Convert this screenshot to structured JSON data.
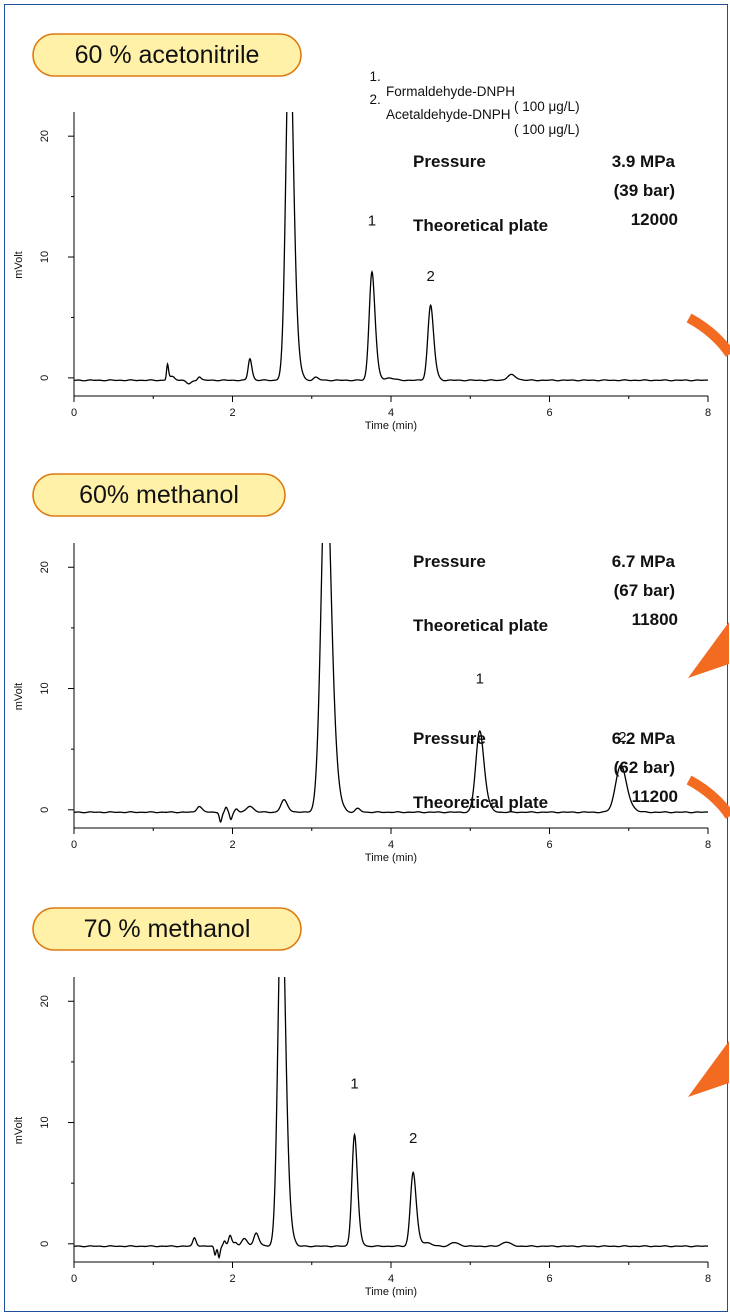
{
  "legend": [
    {
      "num": "1.",
      "name": "Formaldehyde-DNPH",
      "conc": "( 100 μg/L)"
    },
    {
      "num": "2.",
      "name": "Acetaldehyde-DNPH",
      "conc": "( 100 μg/L)"
    }
  ],
  "labels": {
    "pressure": "Pressure",
    "plate": "Theoretical plate"
  },
  "colors": {
    "badge_fill": "#fff2a8",
    "badge_stroke": "#e07a12",
    "arrow": "#f26b21",
    "frame": "#1f4e9c",
    "trace": "#000000"
  },
  "chart_data": [
    {
      "type": "line",
      "condition": "60 % acetonitrile",
      "pressure_value": "3.9  MPa",
      "pressure_bar": "(39 bar)",
      "plate_value": "12000",
      "xlabel": "Time (min)",
      "ylabel": "mVolt",
      "xlim": [
        0,
        8
      ],
      "ylim": [
        -1.5,
        22
      ],
      "xticks": [
        "0",
        "2",
        "4",
        "6",
        "8"
      ],
      "yticks": [
        "0",
        "10",
        "20"
      ],
      "baseline": -0.2,
      "peaks": [
        {
          "t": 1.18,
          "h": 1.3,
          "w": 0.012
        },
        {
          "t": 1.24,
          "h": 0.3,
          "w": 0.03
        },
        {
          "t": 1.45,
          "h": -0.3,
          "w": 0.03
        },
        {
          "t": 1.58,
          "h": 0.3,
          "w": 0.02
        },
        {
          "t": 2.22,
          "h": 1.8,
          "w": 0.022
        },
        {
          "t": 2.72,
          "h": 30,
          "w": 0.045
        },
        {
          "t": 3.05,
          "h": 0.25,
          "w": 0.03
        },
        {
          "t": 3.76,
          "h": 9.0,
          "w": 0.035
        },
        {
          "t": 3.98,
          "h": 0.2,
          "w": 0.05
        },
        {
          "t": 4.5,
          "h": 6.2,
          "w": 0.035
        },
        {
          "t": 5.52,
          "h": 0.45,
          "w": 0.05
        }
      ],
      "peak_labels": [
        {
          "label": "1",
          "t": 3.76,
          "y": 12.6
        },
        {
          "label": "2",
          "t": 4.5,
          "y": 8.0
        }
      ]
    },
    {
      "type": "line",
      "condition": "60% methanol",
      "pressure_value": "6.7 MPa",
      "pressure_bar": "(67 bar)",
      "plate_value": "11800",
      "xlabel": "Time (min)",
      "ylabel": "mVolt",
      "xlim": [
        0,
        8
      ],
      "ylim": [
        -1.5,
        22
      ],
      "xticks": [
        "0",
        "2",
        "4",
        "6",
        "8"
      ],
      "yticks": [
        "0",
        "10",
        "20"
      ],
      "baseline": -0.2,
      "peaks": [
        {
          "t": 1.58,
          "h": 0.5,
          "w": 0.03
        },
        {
          "t": 1.85,
          "h": -0.8,
          "w": 0.015
        },
        {
          "t": 1.92,
          "h": 0.4,
          "w": 0.015
        },
        {
          "t": 1.98,
          "h": -0.6,
          "w": 0.015
        },
        {
          "t": 2.05,
          "h": 0.3,
          "w": 0.02
        },
        {
          "t": 2.22,
          "h": 0.5,
          "w": 0.04
        },
        {
          "t": 2.65,
          "h": 1.0,
          "w": 0.04
        },
        {
          "t": 3.18,
          "h": 30,
          "w": 0.06
        },
        {
          "t": 3.58,
          "h": 0.3,
          "w": 0.03
        },
        {
          "t": 5.12,
          "h": 6.7,
          "w": 0.05
        },
        {
          "t": 6.9,
          "h": 3.9,
          "w": 0.065
        }
      ],
      "peak_labels": [
        {
          "label": "1",
          "t": 5.12,
          "y": 10.4
        },
        {
          "label": "2",
          "t": 6.92,
          "y": 5.6
        }
      ]
    },
    {
      "type": "line",
      "condition": "70 % methanol",
      "pressure_value": "6.2 MPa",
      "pressure_bar": "(62 bar)",
      "plate_value": "11200",
      "xlabel": "Time (min)",
      "ylabel": "mVolt",
      "xlim": [
        0,
        8
      ],
      "ylim": [
        -1.5,
        22
      ],
      "xticks": [
        "0",
        "2",
        "4",
        "6",
        "8"
      ],
      "yticks": [
        "0",
        "10",
        "20"
      ],
      "baseline": -0.2,
      "peaks": [
        {
          "t": 1.52,
          "h": 0.7,
          "w": 0.02
        },
        {
          "t": 1.78,
          "h": -0.7,
          "w": 0.012
        },
        {
          "t": 1.83,
          "h": -0.9,
          "w": 0.012
        },
        {
          "t": 1.9,
          "h": 0.4,
          "w": 0.015
        },
        {
          "t": 1.97,
          "h": 0.9,
          "w": 0.02
        },
        {
          "t": 2.04,
          "h": 0.3,
          "w": 0.02
        },
        {
          "t": 2.15,
          "h": 0.6,
          "w": 0.035
        },
        {
          "t": 2.3,
          "h": 1.1,
          "w": 0.03
        },
        {
          "t": 2.62,
          "h": 30,
          "w": 0.045
        },
        {
          "t": 3.54,
          "h": 9.2,
          "w": 0.033
        },
        {
          "t": 4.28,
          "h": 6.1,
          "w": 0.035
        },
        {
          "t": 4.45,
          "h": 0.3,
          "w": 0.05
        },
        {
          "t": 4.8,
          "h": 0.3,
          "w": 0.05
        },
        {
          "t": 5.45,
          "h": 0.35,
          "w": 0.05
        }
      ],
      "peak_labels": [
        {
          "label": "1",
          "t": 3.54,
          "y": 12.8
        },
        {
          "label": "2",
          "t": 4.28,
          "y": 8.3
        }
      ]
    }
  ]
}
